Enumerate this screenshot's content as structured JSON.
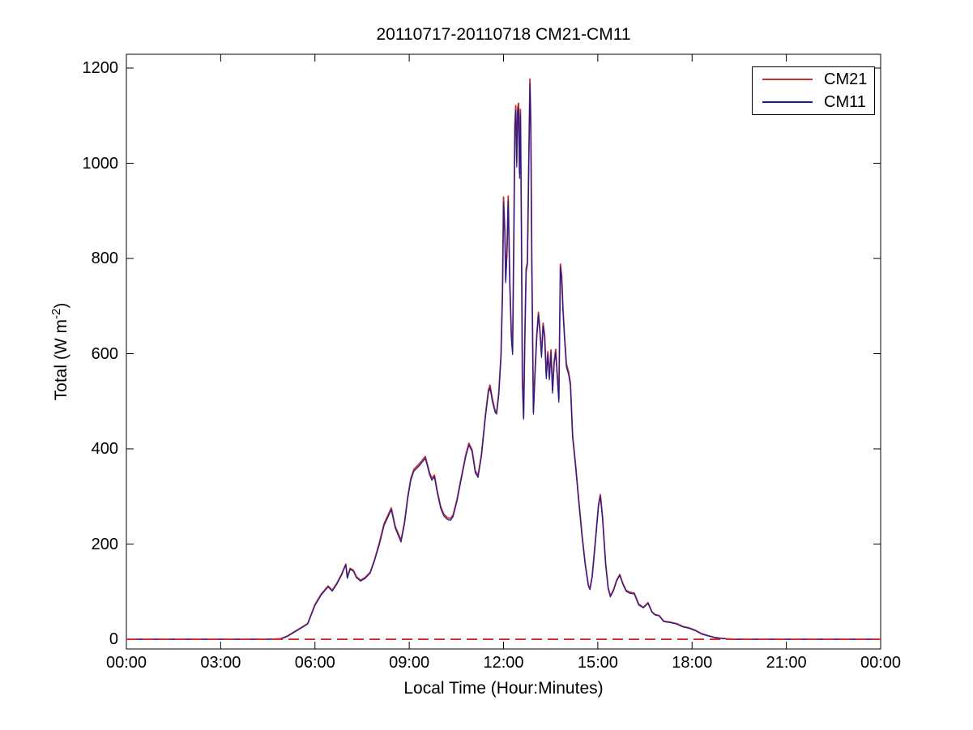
{
  "chart_data": {
    "type": "line",
    "title": "20110717-20110718 CM21-CM11",
    "xlabel": "Local Time (Hour:Minutes)",
    "ylabel": "Total (W m-2)",
    "ylabel_parts": {
      "prefix": "Total (W m",
      "sup": "-2",
      "suffix": ")"
    },
    "x_unit": "hours",
    "xlim_hours": [
      0,
      24
    ],
    "ylim": [
      -20,
      1230
    ],
    "grid": false,
    "legend_position": "top-right",
    "x_ticks": {
      "hours": [
        0,
        3,
        6,
        9,
        12,
        15,
        18,
        21,
        24
      ],
      "labels": [
        "00:00",
        "03:00",
        "06:00",
        "09:00",
        "12:00",
        "15:00",
        "18:00",
        "21:00",
        "00:00"
      ]
    },
    "y_ticks": {
      "values": [
        0,
        200,
        400,
        600,
        800,
        1000,
        1200
      ],
      "labels": [
        "0",
        "200",
        "400",
        "600",
        "800",
        "1000",
        "1200"
      ]
    },
    "zero_line": {
      "y": 0,
      "color": "#cc3333",
      "style": "dashed"
    },
    "x": [
      0,
      0.5,
      1,
      1.5,
      2,
      2.5,
      3,
      3.5,
      4,
      4.5,
      4.9,
      5.1,
      5.3,
      5.55,
      5.77,
      6.0,
      6.2,
      6.42,
      6.55,
      6.7,
      6.85,
      6.98,
      7.03,
      7.12,
      7.22,
      7.32,
      7.45,
      7.6,
      7.76,
      7.9,
      8.05,
      8.2,
      8.43,
      8.55,
      8.74,
      8.85,
      8.95,
      9.05,
      9.15,
      9.3,
      9.45,
      9.51,
      9.58,
      9.65,
      9.72,
      9.8,
      9.9,
      10.0,
      10.1,
      10.22,
      10.32,
      10.4,
      10.52,
      10.65,
      10.8,
      10.9,
      11.0,
      11.1,
      11.19,
      11.3,
      11.42,
      11.52,
      11.57,
      11.65,
      11.73,
      11.78,
      11.85,
      11.92,
      11.97,
      12.0,
      12.04,
      12.07,
      12.11,
      12.15,
      12.2,
      12.25,
      12.29,
      12.33,
      12.36,
      12.39,
      12.42,
      12.45,
      12.48,
      12.51,
      12.54,
      12.57,
      12.6,
      12.64,
      12.68,
      12.72,
      12.76,
      12.8,
      12.84,
      12.87,
      12.9,
      12.95,
      13.0,
      13.06,
      13.11,
      13.16,
      13.21,
      13.26,
      13.31,
      13.36,
      13.41,
      13.46,
      13.51,
      13.56,
      13.61,
      13.66,
      13.71,
      13.76,
      13.81,
      13.85,
      13.89,
      13.94,
      14.0,
      14.07,
      14.13,
      14.2,
      14.3,
      14.4,
      14.5,
      14.6,
      14.7,
      14.75,
      14.82,
      14.92,
      15.02,
      15.08,
      15.15,
      15.25,
      15.33,
      15.4,
      15.5,
      15.6,
      15.7,
      15.8,
      15.9,
      16.0,
      16.16,
      16.3,
      16.45,
      16.6,
      16.72,
      16.82,
      16.95,
      17.1,
      17.3,
      17.5,
      17.7,
      17.9,
      18.1,
      18.3,
      18.5,
      18.7,
      18.9,
      19.1,
      19.4,
      19.8,
      20.5,
      21.5,
      22.5,
      23.5,
      24
    ],
    "series": [
      {
        "name": "CM21",
        "color": "#c03030",
        "values": [
          0,
          0,
          0,
          0,
          0,
          0,
          0,
          0,
          0,
          0,
          1,
          6,
          14,
          24,
          33,
          73,
          95,
          112,
          103,
          118,
          137,
          158,
          130,
          149,
          145,
          131,
          124,
          130,
          141,
          168,
          203,
          243,
          276,
          238,
          208,
          246,
          298,
          338,
          357,
          367,
          379,
          384,
          367,
          349,
          338,
          345,
          309,
          279,
          263,
          255,
          254,
          262,
          294,
          338,
          388,
          412,
          398,
          354,
          344,
          389,
          468,
          524,
          534,
          504,
          481,
          477,
          519,
          598,
          735,
          929,
          860,
          755,
          818,
          931,
          748,
          638,
          604,
          855,
          1078,
          1121,
          1002,
          1117,
          1126,
          978,
          1113,
          866,
          545,
          466,
          642,
          778,
          792,
          984,
          1177,
          1084,
          798,
          477,
          558,
          641,
          687,
          648,
          598,
          664,
          638,
          553,
          604,
          551,
          608,
          523,
          583,
          609,
          558,
          504,
          788,
          762,
          698,
          638,
          578,
          562,
          538,
          428,
          362,
          288,
          218,
          158,
          114,
          106,
          132,
          205,
          282,
          304,
          258,
          158,
          108,
          91,
          104,
          124,
          136,
          117,
          103,
          99,
          97,
          74,
          67,
          77,
          58,
          52,
          50,
          38,
          36,
          33,
          27,
          24,
          19,
          12,
          8,
          4,
          2,
          1,
          0,
          0,
          0,
          0,
          0,
          0,
          0
        ]
      },
      {
        "name": "CM11",
        "color": "#1c1c96",
        "values": [
          0,
          0,
          0,
          0,
          0,
          0,
          0,
          0,
          0,
          0,
          1,
          5,
          13,
          23,
          32,
          71,
          93,
          110,
          101,
          116,
          135,
          156,
          128,
          147,
          143,
          129,
          122,
          128,
          139,
          166,
          199,
          239,
          272,
          234,
          204,
          242,
          294,
          334,
          353,
          363,
          375,
          380,
          363,
          345,
          334,
          341,
          305,
          275,
          259,
          251,
          250,
          258,
          290,
          334,
          384,
          408,
          394,
          350,
          340,
          385,
          464,
          518,
          528,
          498,
          477,
          473,
          513,
          592,
          729,
          919,
          854,
          749,
          812,
          921,
          742,
          632,
          598,
          849,
          1068,
          1111,
          992,
          1107,
          1116,
          968,
          1103,
          860,
          539,
          462,
          636,
          772,
          786,
          974,
          1167,
          1074,
          792,
          473,
          552,
          635,
          681,
          642,
          592,
          658,
          632,
          547,
          598,
          545,
          602,
          517,
          577,
          603,
          552,
          498,
          782,
          756,
          692,
          632,
          572,
          556,
          532,
          424,
          358,
          284,
          214,
          156,
          112,
          104,
          130,
          201,
          278,
          300,
          254,
          156,
          106,
          89,
          102,
          122,
          134,
          115,
          101,
          97,
          95,
          72,
          66,
          75,
          57,
          51,
          49,
          37,
          35,
          32,
          26,
          23,
          18,
          11,
          7,
          4,
          2,
          1,
          0,
          0,
          0,
          0,
          0,
          0,
          0
        ]
      }
    ]
  },
  "legend": {
    "entries": [
      {
        "label": "CM21"
      },
      {
        "label": "CM11"
      }
    ]
  }
}
